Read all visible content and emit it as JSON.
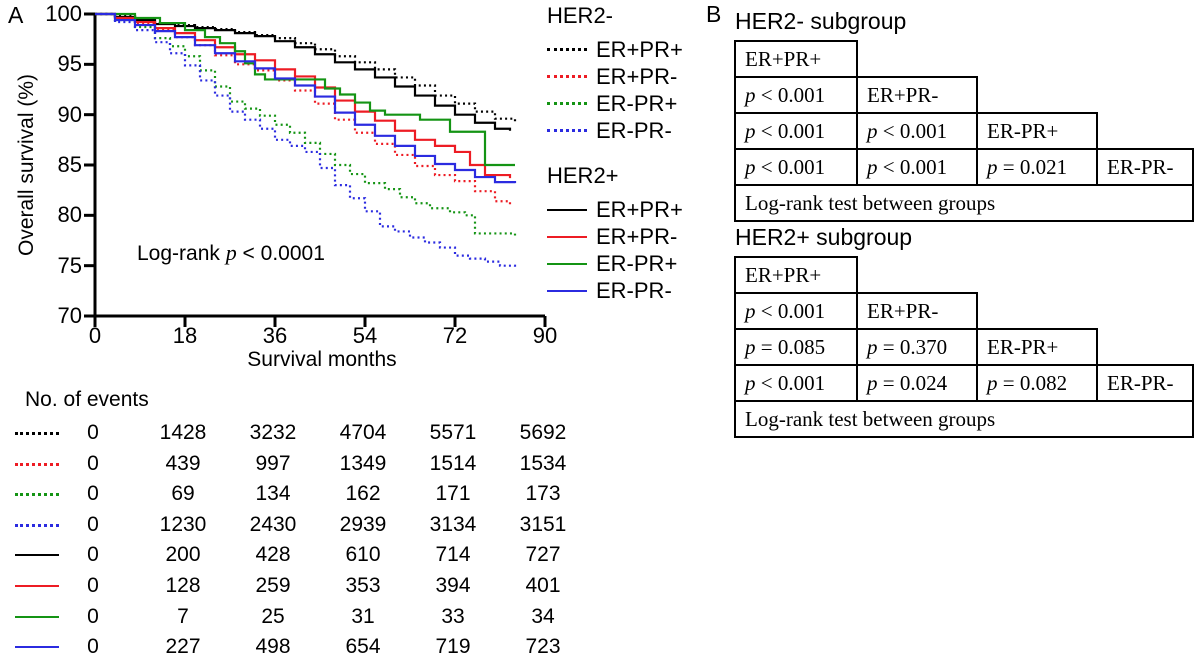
{
  "panel_a": {
    "label": "A",
    "annotation": {
      "pre": "Log-rank ",
      "p": "p",
      "post": " < 0.0001"
    },
    "legend": {
      "colors": [
        "#000000",
        "#ED1C24",
        "#149414",
        "#2B2BE0"
      ],
      "groups": [
        {
          "title": "HER2-",
          "style": "dotted",
          "items": [
            "ER+PR+",
            "ER+PR-",
            "ER-PR+",
            "ER-PR-"
          ]
        },
        {
          "title": "HER2+",
          "style": "solid",
          "items": [
            "ER+PR+",
            "ER+PR-",
            "ER-PR+",
            "ER-PR-"
          ]
        }
      ]
    }
  },
  "panel_b": {
    "label": "B",
    "tables": [
      {
        "title": "HER2- subgroup",
        "groups": [
          "ER+PR+",
          "ER+PR-",
          "ER-PR+",
          "ER-PR-"
        ],
        "pvalues": [
          [
            "p < 0.001"
          ],
          [
            "p < 0.001",
            "p < 0.001"
          ],
          [
            "p < 0.001",
            "p < 0.001",
            "p = 0.021"
          ]
        ],
        "footer": "Log-rank test between groups"
      },
      {
        "title": "HER2+ subgroup",
        "groups": [
          "ER+PR+",
          "ER+PR-",
          "ER-PR+",
          "ER-PR-"
        ],
        "pvalues": [
          [
            "p < 0.001"
          ],
          [
            "p = 0.085",
            "p = 0.370"
          ],
          [
            "p < 0.001",
            "p = 0.024",
            "p = 0.082"
          ]
        ],
        "footer": "Log-rank test between groups"
      }
    ]
  },
  "chart_data": {
    "type": "line",
    "subtype": "kaplan-meier-step",
    "title": "",
    "xlabel": "Survival months",
    "ylabel": "Overall survival (%)",
    "xlim": [
      0,
      90
    ],
    "ylim": [
      70,
      100
    ],
    "x_ticks": [
      0,
      18,
      36,
      54,
      72,
      90
    ],
    "y_ticks": [
      100,
      95,
      90,
      85,
      80,
      75,
      70
    ],
    "grid": false,
    "legend_position": "right",
    "annotation": "Log-rank p < 0.0001",
    "series": [
      {
        "name": "HER2- ER+PR+",
        "group": "HER2-",
        "color": "#000000",
        "style": "dotted",
        "points": [
          [
            0,
            100
          ],
          [
            4,
            99.8
          ],
          [
            8,
            99.5
          ],
          [
            12,
            99.1
          ],
          [
            16,
            98.9
          ],
          [
            20,
            98.7
          ],
          [
            24,
            98.5
          ],
          [
            28,
            98.2
          ],
          [
            32,
            97.9
          ],
          [
            36,
            97.6
          ],
          [
            40,
            97.1
          ],
          [
            44,
            96.5
          ],
          [
            48,
            95.8
          ],
          [
            52,
            95.2
          ],
          [
            56,
            94.5
          ],
          [
            60,
            93.7
          ],
          [
            64,
            92.9
          ],
          [
            68,
            91.9
          ],
          [
            72,
            91.1
          ],
          [
            76,
            90.3
          ],
          [
            80,
            89.6
          ],
          [
            84,
            89.2
          ]
        ]
      },
      {
        "name": "HER2- ER+PR-",
        "group": "HER2-",
        "color": "#ED1C24",
        "style": "dotted",
        "points": [
          [
            0,
            100
          ],
          [
            4,
            99.5
          ],
          [
            8,
            99.0
          ],
          [
            12,
            98.4
          ],
          [
            16,
            97.7
          ],
          [
            20,
            96.9
          ],
          [
            24,
            95.9
          ],
          [
            28,
            95.0
          ],
          [
            32,
            94.4
          ],
          [
            36,
            93.4
          ],
          [
            40,
            92.4
          ],
          [
            44,
            91.1
          ],
          [
            48,
            89.5
          ],
          [
            52,
            88.2
          ],
          [
            56,
            87.1
          ],
          [
            60,
            86.0
          ],
          [
            64,
            84.9
          ],
          [
            68,
            84.0
          ],
          [
            72,
            83.4
          ],
          [
            76,
            82.4
          ],
          [
            80,
            81.4
          ],
          [
            83,
            80.9
          ]
        ]
      },
      {
        "name": "HER2- ER-PR+",
        "group": "HER2-",
        "color": "#149414",
        "style": "dotted",
        "points": [
          [
            0,
            100
          ],
          [
            4,
            99.4
          ],
          [
            8,
            98.7
          ],
          [
            12,
            97.6
          ],
          [
            15,
            96.8
          ],
          [
            18,
            95.8
          ],
          [
            21,
            94.4
          ],
          [
            24,
            92.8
          ],
          [
            27,
            91.3
          ],
          [
            30,
            90.6
          ],
          [
            33,
            89.9
          ],
          [
            36,
            89.0
          ],
          [
            39,
            88.2
          ],
          [
            42,
            87.2
          ],
          [
            45,
            86.1
          ],
          [
            48,
            85.0
          ],
          [
            51,
            84.1
          ],
          [
            54,
            83.2
          ],
          [
            58,
            82.6
          ],
          [
            61,
            81.8
          ],
          [
            64,
            81.2
          ],
          [
            67,
            80.7
          ],
          [
            71,
            80.3
          ],
          [
            74,
            80.0
          ],
          [
            76,
            78.2
          ],
          [
            84,
            78.0
          ]
        ]
      },
      {
        "name": "HER2- ER-PR-",
        "group": "HER2-",
        "color": "#2B2BE0",
        "style": "dotted",
        "points": [
          [
            0,
            100
          ],
          [
            4,
            99.2
          ],
          [
            8,
            98.4
          ],
          [
            12,
            97.2
          ],
          [
            15,
            96.1
          ],
          [
            18,
            94.9
          ],
          [
            21,
            93.4
          ],
          [
            24,
            91.9
          ],
          [
            27,
            90.3
          ],
          [
            30,
            89.5
          ],
          [
            33,
            88.6
          ],
          [
            36,
            87.5
          ],
          [
            39,
            86.9
          ],
          [
            42,
            86.3
          ],
          [
            45,
            84.7
          ],
          [
            48,
            83.0
          ],
          [
            51,
            81.7
          ],
          [
            54,
            80.4
          ],
          [
            57,
            78.9
          ],
          [
            60,
            78.4
          ],
          [
            63,
            77.8
          ],
          [
            66,
            77.3
          ],
          [
            69,
            76.8
          ],
          [
            72,
            76.0
          ],
          [
            75,
            75.7
          ],
          [
            78,
            75.4
          ],
          [
            81,
            75.0
          ],
          [
            84,
            74.7
          ]
        ]
      },
      {
        "name": "HER2+ ER+PR+",
        "group": "HER2+",
        "color": "#000000",
        "style": "solid",
        "points": [
          [
            0,
            100
          ],
          [
            4,
            99.7
          ],
          [
            8,
            99.4
          ],
          [
            12,
            99.0
          ],
          [
            16,
            98.8
          ],
          [
            20,
            98.6
          ],
          [
            24,
            98.4
          ],
          [
            28,
            98.1
          ],
          [
            32,
            97.8
          ],
          [
            36,
            97.3
          ],
          [
            40,
            96.7
          ],
          [
            44,
            96.0
          ],
          [
            48,
            95.2
          ],
          [
            52,
            94.5
          ],
          [
            56,
            93.7
          ],
          [
            60,
            92.8
          ],
          [
            64,
            91.9
          ],
          [
            68,
            90.9
          ],
          [
            72,
            90.0
          ],
          [
            76,
            89.2
          ],
          [
            80,
            88.6
          ],
          [
            83,
            88.4
          ]
        ]
      },
      {
        "name": "HER2+ ER+PR-",
        "group": "HER2+",
        "color": "#ED1C24",
        "style": "solid",
        "points": [
          [
            0,
            100
          ],
          [
            4,
            99.6
          ],
          [
            8,
            99.2
          ],
          [
            12,
            98.6
          ],
          [
            16,
            98.1
          ],
          [
            20,
            97.4
          ],
          [
            24,
            96.7
          ],
          [
            28,
            96.0
          ],
          [
            32,
            95.4
          ],
          [
            36,
            94.5
          ],
          [
            40,
            93.8
          ],
          [
            44,
            92.7
          ],
          [
            48,
            91.4
          ],
          [
            52,
            90.3
          ],
          [
            56,
            89.4
          ],
          [
            60,
            88.4
          ],
          [
            64,
            87.5
          ],
          [
            68,
            86.9
          ],
          [
            72,
            86.3
          ],
          [
            75,
            85.0
          ],
          [
            78,
            84.0
          ],
          [
            83,
            83.7
          ]
        ]
      },
      {
        "name": "HER2+ ER-PR+",
        "group": "HER2+",
        "color": "#149414",
        "style": "solid",
        "points": [
          [
            0,
            100
          ],
          [
            8,
            99.6
          ],
          [
            13,
            99.1
          ],
          [
            18,
            98.4
          ],
          [
            22,
            97.7
          ],
          [
            25,
            97.1
          ],
          [
            28,
            96.3
          ],
          [
            30,
            95.1
          ],
          [
            32,
            94.0
          ],
          [
            34,
            93.5
          ],
          [
            45,
            93.5
          ],
          [
            46,
            92.6
          ],
          [
            49,
            92.0
          ],
          [
            52,
            91.2
          ],
          [
            55,
            90.4
          ],
          [
            58,
            90.0
          ],
          [
            65,
            89.5
          ],
          [
            71,
            88.3
          ],
          [
            78,
            85.0
          ],
          [
            84,
            85.0
          ]
        ]
      },
      {
        "name": "HER2+ ER-PR-",
        "group": "HER2+",
        "color": "#2B2BE0",
        "style": "solid",
        "points": [
          [
            0,
            100
          ],
          [
            4,
            99.4
          ],
          [
            8,
            98.9
          ],
          [
            12,
            98.3
          ],
          [
            16,
            97.7
          ],
          [
            20,
            96.9
          ],
          [
            24,
            96.1
          ],
          [
            28,
            95.3
          ],
          [
            32,
            94.6
          ],
          [
            36,
            93.6
          ],
          [
            40,
            92.9
          ],
          [
            44,
            91.8
          ],
          [
            48,
            90.2
          ],
          [
            52,
            89.0
          ],
          [
            56,
            87.9
          ],
          [
            60,
            86.9
          ],
          [
            64,
            85.9
          ],
          [
            68,
            85.1
          ],
          [
            72,
            84.5
          ],
          [
            76,
            83.8
          ],
          [
            80,
            83.3
          ],
          [
            84,
            83.2
          ]
        ]
      }
    ],
    "events_table": {
      "header": "No. of events",
      "timepoints": [
        0,
        18,
        36,
        54,
        72,
        90
      ],
      "rows": [
        {
          "series": "HER2- ER+PR+",
          "color": "#000000",
          "style": "dotted",
          "values": [
            0,
            1428,
            3232,
            4704,
            5571,
            5692
          ]
        },
        {
          "series": "HER2- ER+PR-",
          "color": "#ED1C24",
          "style": "dotted",
          "values": [
            0,
            439,
            997,
            1349,
            1514,
            1534
          ]
        },
        {
          "series": "HER2- ER-PR+",
          "color": "#149414",
          "style": "dotted",
          "values": [
            0,
            69,
            134,
            162,
            171,
            173
          ]
        },
        {
          "series": "HER2- ER-PR-",
          "color": "#2B2BE0",
          "style": "dotted",
          "values": [
            0,
            1230,
            2430,
            2939,
            3134,
            3151
          ]
        },
        {
          "series": "HER2+ ER+PR+",
          "color": "#000000",
          "style": "solid",
          "values": [
            0,
            200,
            428,
            610,
            714,
            727
          ]
        },
        {
          "series": "HER2+ ER+PR-",
          "color": "#ED1C24",
          "style": "solid",
          "values": [
            0,
            128,
            259,
            353,
            394,
            401
          ]
        },
        {
          "series": "HER2+ ER-PR+",
          "color": "#149414",
          "style": "solid",
          "values": [
            0,
            7,
            25,
            31,
            33,
            34
          ]
        },
        {
          "series": "HER2+ ER-PR-",
          "color": "#2B2BE0",
          "style": "solid",
          "values": [
            0,
            227,
            498,
            654,
            719,
            723
          ]
        }
      ]
    }
  }
}
